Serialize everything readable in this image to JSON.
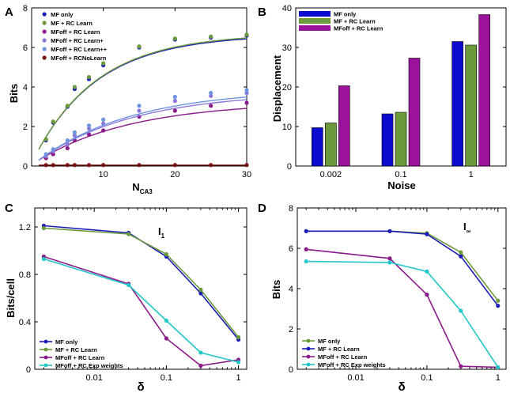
{
  "chart_data": [
    {
      "panel": "A",
      "type": "line",
      "xlabel_main": "N",
      "xlabel_sub": "CA3",
      "ylabel": "Bits",
      "xlim": [
        0,
        30
      ],
      "ylim": [
        0,
        8
      ],
      "xticks": [
        10,
        20,
        30
      ],
      "yticks": [
        0,
        2,
        4,
        6,
        8
      ],
      "legend": "top-left",
      "series": [
        {
          "name": "MF only",
          "color": "#1c1cb8",
          "x": [
            2,
            3,
            5,
            6,
            8,
            10,
            15,
            20,
            25,
            30
          ],
          "y": [
            1.3,
            2.2,
            3.0,
            3.9,
            4.4,
            5.1,
            6.0,
            6.4,
            6.5,
            6.6
          ],
          "fit": [
            0.85,
            0.113
          ]
        },
        {
          "name": "MF + RC Learn",
          "color": "#6a9a3a",
          "x": [
            2,
            3,
            5,
            6,
            8,
            10,
            15,
            20,
            25,
            30
          ],
          "y": [
            1.35,
            2.25,
            3.05,
            4.0,
            4.5,
            5.2,
            6.05,
            6.45,
            6.55,
            6.65
          ],
          "fit": [
            0.85,
            0.113
          ]
        },
        {
          "name": "MFoff + RC Learn",
          "color": "#8a1a8a",
          "x": [
            2,
            3,
            5,
            6,
            8,
            10,
            15,
            20,
            25,
            30
          ],
          "y": [
            0.4,
            0.6,
            0.9,
            1.3,
            1.6,
            1.8,
            2.5,
            2.8,
            3.05,
            3.2
          ],
          "fit": [
            0.3,
            0.075
          ]
        },
        {
          "name": "MFoff + RC Learn+",
          "color": "#8a78d8",
          "x": [
            2,
            3,
            5,
            6,
            8,
            10,
            15,
            20,
            25,
            30
          ],
          "y": [
            0.5,
            0.75,
            1.1,
            1.55,
            1.9,
            2.15,
            2.8,
            3.3,
            3.55,
            3.7
          ],
          "fit": [
            0.3,
            0.075
          ]
        },
        {
          "name": "MFoff + RC Learn++",
          "color": "#6f94df",
          "x": [
            2,
            3,
            5,
            6,
            8,
            10,
            15,
            20,
            25,
            30
          ],
          "y": [
            0.6,
            0.85,
            1.3,
            1.7,
            2.05,
            2.35,
            3.05,
            3.5,
            3.7,
            3.85
          ],
          "fit": [
            0.3,
            0.075
          ]
        },
        {
          "name": "MFoff + RCNoLearn",
          "color": "#7a1414",
          "x": [
            2,
            3,
            5,
            6,
            8,
            10,
            15,
            20,
            25,
            30
          ],
          "y": [
            0.05,
            0.05,
            0.05,
            0.05,
            0.05,
            0.05,
            0.05,
            0.05,
            0.05,
            0.05
          ],
          "fit": [
            0.05,
            0
          ]
        }
      ]
    },
    {
      "panel": "B",
      "type": "bar",
      "xlabel": "Noise",
      "ylabel": "Displacement",
      "ylim": [
        0,
        40
      ],
      "yticks": [
        0,
        10,
        20,
        30,
        40
      ],
      "categories": [
        "0.002",
        "0.1",
        "1"
      ],
      "legend": "top-left",
      "series": [
        {
          "name": "MF only",
          "color": "#0b0bd0",
          "values": [
            9.7,
            13.2,
            31.5
          ]
        },
        {
          "name": "MF + RC Learn",
          "color": "#6a9a3a",
          "values": [
            10.9,
            13.6,
            30.6
          ]
        },
        {
          "name": "MFoff + RC Learn",
          "color": "#9a139a",
          "values": [
            20.3,
            27.3,
            38.3
          ]
        }
      ]
    },
    {
      "panel": "C",
      "type": "line",
      "xscale": "log",
      "xlabel": "δ",
      "ylabel": "Bits/cell",
      "annotation_main": "I",
      "annotation_sub": "1",
      "xlim": [
        0.0015,
        1.3
      ],
      "ylim": [
        0,
        1.36
      ],
      "xticks": [
        0.01,
        0.1,
        1
      ],
      "xtick_labels": [
        "0.01",
        "0.1",
        "1"
      ],
      "yticks": [
        0,
        0.4,
        0.8,
        1.2
      ],
      "ytick_labels": [
        "0",
        "0.4",
        "0.8",
        "1.2"
      ],
      "legend": "bottom-left",
      "series": [
        {
          "name": "MF only",
          "color": "#1c1cb8",
          "x": [
            0.002,
            0.03,
            0.1,
            0.3,
            1
          ],
          "y": [
            1.21,
            1.15,
            0.95,
            0.64,
            0.25
          ]
        },
        {
          "name": "MF + RC Learn",
          "color": "#6a9a3a",
          "x": [
            0.002,
            0.03,
            0.1,
            0.3,
            1
          ],
          "y": [
            1.19,
            1.14,
            0.97,
            0.67,
            0.27
          ]
        },
        {
          "name": "MFoff + RC Learn",
          "color": "#8a1a8a",
          "x": [
            0.002,
            0.03,
            0.1,
            0.3,
            1
          ],
          "y": [
            0.95,
            0.72,
            0.26,
            0.03,
            0.08
          ]
        },
        {
          "name": "MFoff + RC Exp weights",
          "color": "#22c6c6",
          "x": [
            0.002,
            0.03,
            0.1,
            0.3,
            1
          ],
          "y": [
            0.93,
            0.71,
            0.41,
            0.14,
            0.06
          ]
        }
      ]
    },
    {
      "panel": "D",
      "type": "line",
      "xscale": "log",
      "xlabel": "δ",
      "ylabel": "Bits",
      "annotation_main": "I",
      "annotation_sub": "∞",
      "xlim": [
        0.0015,
        1.3
      ],
      "ylim": [
        0,
        8
      ],
      "xticks": [
        0.01,
        0.1,
        1
      ],
      "xtick_labels": [
        "0.01",
        "0.1",
        "1"
      ],
      "yticks": [
        0,
        2,
        4,
        6,
        8
      ],
      "ytick_labels": [
        "0",
        "2",
        "4",
        "6",
        "8"
      ],
      "legend": "bottom-left",
      "series": [
        {
          "name": "MF only",
          "color": "#6a9a3a",
          "x": [
            0.002,
            0.03,
            0.1,
            0.3,
            1
          ],
          "y": [
            6.85,
            6.85,
            6.75,
            5.8,
            3.4
          ]
        },
        {
          "name": "MF + RC Learn",
          "color": "#1c1cb8",
          "x": [
            0.002,
            0.03,
            0.1,
            0.3,
            1
          ],
          "y": [
            6.85,
            6.85,
            6.7,
            5.6,
            3.15
          ]
        },
        {
          "name": "MFoff + RC Learn",
          "color": "#8a1a8a",
          "x": [
            0.002,
            0.03,
            0.1,
            0.3,
            1
          ],
          "y": [
            5.95,
            5.5,
            3.7,
            0.15,
            0.1
          ]
        },
        {
          "name": "MFoff + RC Exp weights",
          "color": "#22c6c6",
          "x": [
            0.002,
            0.03,
            0.1,
            0.3,
            1
          ],
          "y": [
            5.35,
            5.3,
            4.85,
            2.9,
            0.1
          ]
        }
      ]
    }
  ]
}
